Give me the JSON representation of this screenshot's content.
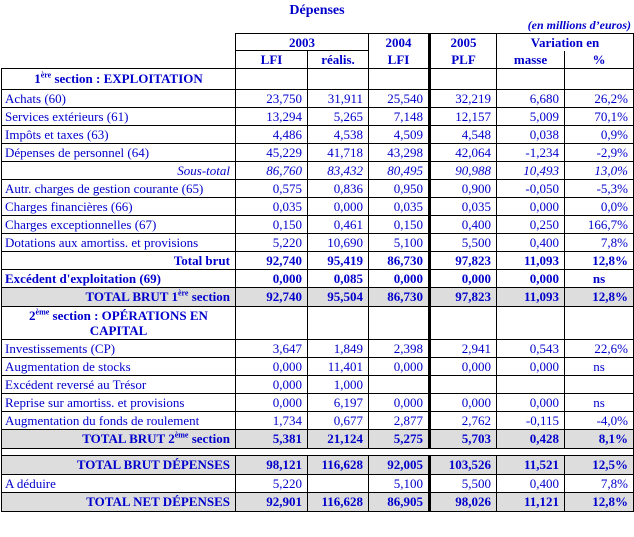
{
  "title": "Dépenses",
  "unit_note": "(en millions d’euros)",
  "colors": {
    "text_blue": "#0000CC",
    "total_row_bg": "#DDDDDD",
    "border": "#000000"
  },
  "header": {
    "y2003": "2003",
    "y2003_sub1": "LFI",
    "y2003_sub2": "réalis.",
    "y2004": "2004",
    "y2004_sub": "LFI",
    "y2005": "2005",
    "y2005_sub": "PLF",
    "variation": "Variation en",
    "variation_sub1": "masse",
    "variation_sub2": "%"
  },
  "rows": [
    {
      "style": "section",
      "prefix": "1",
      "sup": "ère",
      "suffix": " section : EXPLOITATION",
      "line2": "",
      "values": [
        "",
        "",
        "",
        "",
        "",
        ""
      ]
    },
    {
      "style": "data",
      "label": "Achats (60)",
      "values": [
        "23,750",
        "31,911",
        "25,540",
        "32,219",
        "6,680",
        "26,2%"
      ]
    },
    {
      "style": "data",
      "label": "Services extérieurs (61)",
      "values": [
        "13,294",
        "5,265",
        "7,148",
        "12,157",
        "5,009",
        "70,1%"
      ]
    },
    {
      "style": "data",
      "label": "Impôts et taxes (63)",
      "values": [
        "4,486",
        "4,538",
        "4,509",
        "4,548",
        "0,038",
        "0,9%"
      ]
    },
    {
      "style": "data",
      "label": "Dépenses de personnel (64)",
      "values": [
        "45,229",
        "41,718",
        "43,298",
        "42,064",
        "-1,234",
        "-2,9%"
      ]
    },
    {
      "style": "subtotal",
      "label": "Sous-total",
      "values": [
        "86,760",
        "83,432",
        "80,495",
        "90,988",
        "10,493",
        "13,0%"
      ]
    },
    {
      "style": "data",
      "label": "Autr. charges de gestion courante (65)",
      "values": [
        "0,575",
        "0,836",
        "0,950",
        "0,900",
        "-0,050",
        "-5,3%"
      ]
    },
    {
      "style": "data",
      "label": "Charges financières (66)",
      "values": [
        "0,035",
        "0,000",
        "0,035",
        "0,035",
        "0,000",
        "0,0%"
      ]
    },
    {
      "style": "data",
      "label": "Charges exceptionnelles (67)",
      "values": [
        "0,150",
        "0,461",
        "0,150",
        "0,400",
        "0,250",
        "166,7%"
      ]
    },
    {
      "style": "data",
      "label": "Dotations aux amortiss. et provisions",
      "values": [
        "5,220",
        "10,690",
        "5,100",
        "5,500",
        "0,400",
        "7,8%"
      ]
    },
    {
      "style": "total-bold",
      "label": "Total brut",
      "values": [
        "92,740",
        "95,419",
        "86,730",
        "97,823",
        "11,093",
        "12,8%"
      ]
    },
    {
      "style": "bold-left",
      "label": "Excédent d'exploitation (69)",
      "values": [
        "0,000",
        "0,085",
        "0,000",
        "0,000",
        "0,000",
        "ns"
      ]
    },
    {
      "style": "total-gray",
      "prefix": "TOTAL BRUT 1",
      "sup": "ère",
      "suffix": " section",
      "values": [
        "92,740",
        "95,504",
        "86,730",
        "97,823",
        "11,093",
        "12,8%"
      ]
    },
    {
      "style": "section",
      "prefix": "2",
      "sup": "ème",
      "suffix": " section : OPÉRATIONS EN",
      "line2": "CAPITAL",
      "values": [
        "",
        "",
        "",
        "",
        "",
        ""
      ]
    },
    {
      "style": "data",
      "label": "Investissements (CP)",
      "values": [
        "3,647",
        "1,849",
        "2,398",
        "2,941",
        "0,543",
        "22,6%"
      ]
    },
    {
      "style": "data",
      "label": "Augmentation de stocks",
      "values": [
        "0,000",
        "11,401",
        "0,000",
        "0,000",
        "0,000",
        "ns"
      ]
    },
    {
      "style": "data",
      "label": "Excédent reversé au Trésor",
      "values": [
        "0,000",
        "1,000",
        "",
        "",
        "",
        ""
      ]
    },
    {
      "style": "data",
      "label": "Reprise sur amortiss. et provisions",
      "values": [
        "0,000",
        "6,197",
        "0,000",
        "0,000",
        "0,000",
        "ns"
      ]
    },
    {
      "style": "data",
      "label": "Augmentation du fonds de roulement",
      "values": [
        "1,734",
        "0,677",
        "2,877",
        "2,762",
        "-0,115",
        "-4,0%"
      ]
    },
    {
      "style": "total-gray",
      "prefix": "TOTAL BRUT 2",
      "sup": "ème",
      "suffix": " section",
      "values": [
        "5,381",
        "21,124",
        "5,275",
        "5,703",
        "0,428",
        "8,1%"
      ]
    },
    {
      "style": "spacer"
    },
    {
      "style": "total-gray",
      "prefix": "TOTAL BRUT DÉPENSES",
      "sup": "",
      "suffix": "",
      "values": [
        "98,121",
        "116,628",
        "92,005",
        "103,526",
        "11,521",
        "12,5%"
      ]
    },
    {
      "style": "data",
      "label": "A déduire",
      "values": [
        "5,220",
        "",
        "5,100",
        "5,500",
        "0,400",
        "7,8%"
      ]
    },
    {
      "style": "total-gray",
      "prefix": "TOTAL NET DÉPENSES",
      "sup": "",
      "suffix": "",
      "values": [
        "92,901",
        "116,628",
        "86,905",
        "98,026",
        "11,121",
        "12,8%"
      ]
    }
  ]
}
